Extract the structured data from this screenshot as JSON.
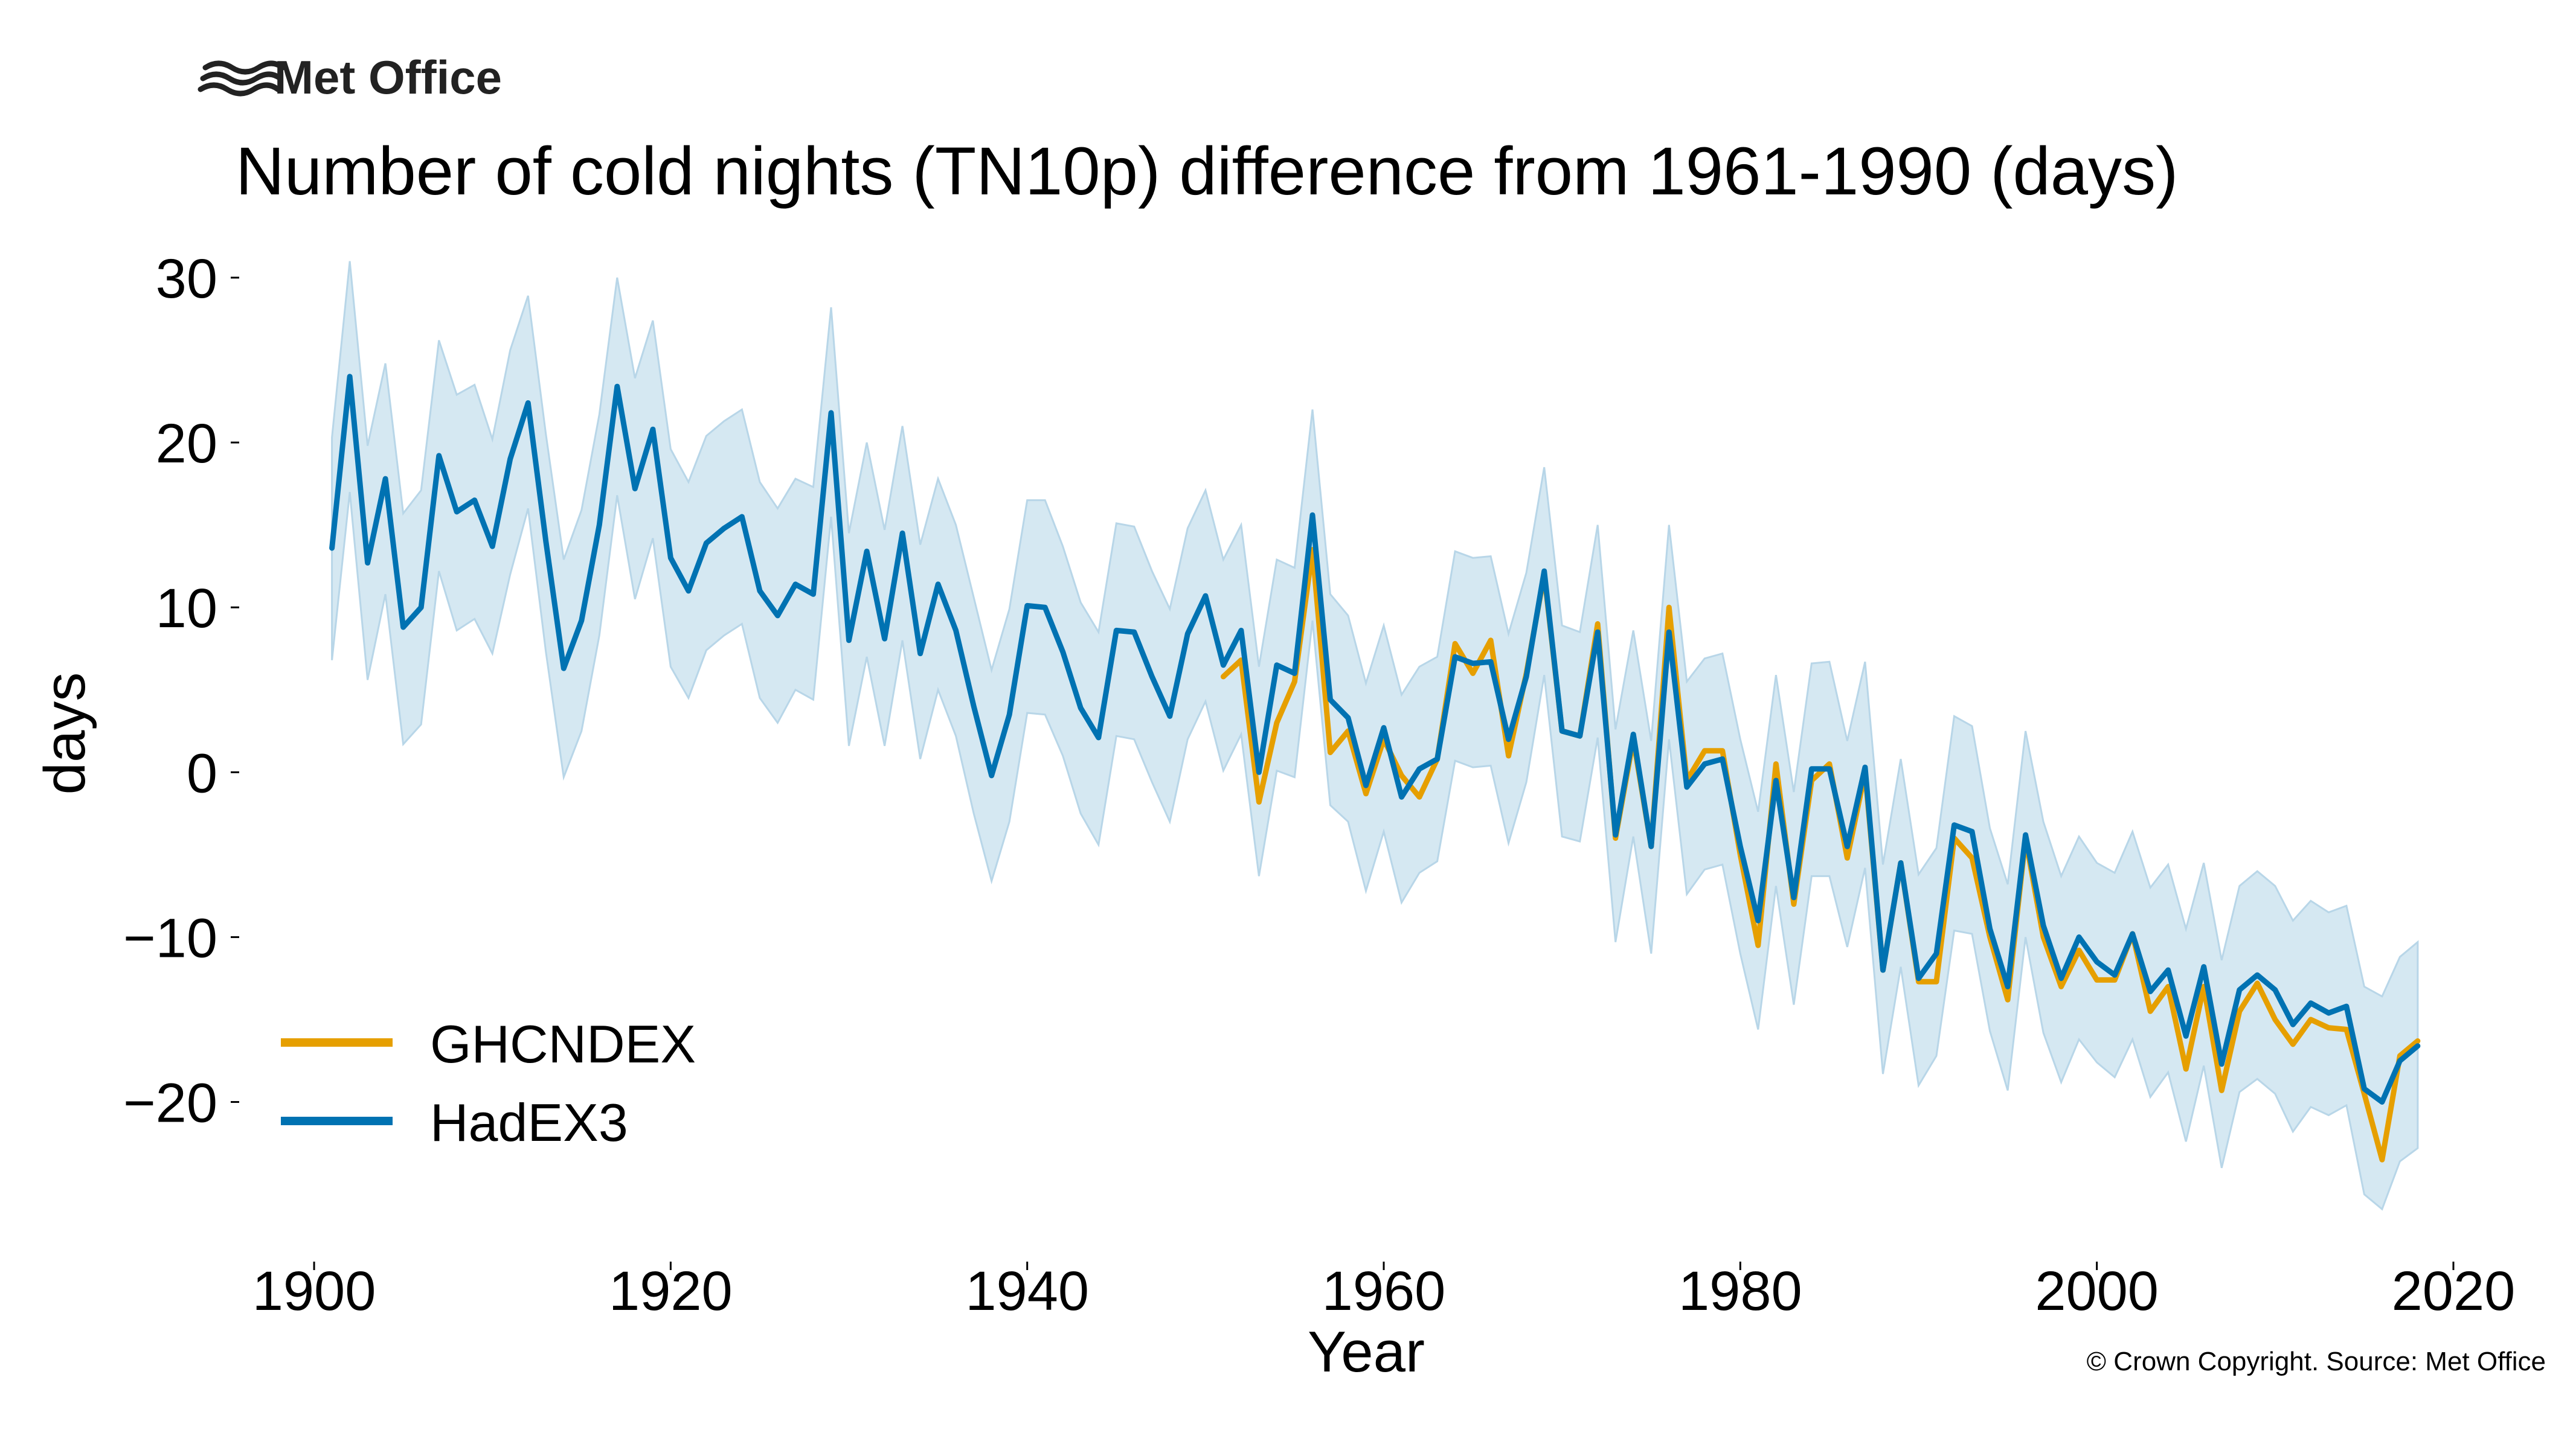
{
  "logo": {
    "text": "Met Office"
  },
  "copyright": "© Crown Copyright. Source: Met Office",
  "colors": {
    "ghcndex": "#e69f00",
    "hadex3": "#0072b2",
    "band": "#d5e8f2",
    "band_edge": "#b8d6e8",
    "axis": "#000000"
  },
  "chart_data": {
    "type": "line",
    "title": "Number of cold nights (TN10p) difference from 1961-1990 (days)",
    "xlabel": "Year",
    "ylabel": "days",
    "xlim": [
      1896,
      2022
    ],
    "ylim": [
      -29.5,
      33
    ],
    "xticks": [
      1900,
      1920,
      1940,
      1960,
      1980,
      2000,
      2020
    ],
    "yticks": [
      30,
      20,
      10,
      0,
      -10,
      -20
    ],
    "ytick_labels": [
      "30",
      "20",
      "10",
      "0",
      "−10",
      "−20"
    ],
    "legend_position": "lower-left",
    "series": [
      {
        "name": "GHCNDEX",
        "color": "#e69f00",
        "x_start": 1951,
        "values": [
          5.8,
          6.8,
          -1.8,
          3.0,
          5.5,
          13.5,
          1.2,
          2.5,
          -1.3,
          2.0,
          -0.2,
          -1.5,
          0.8,
          7.8,
          6.0,
          8.0,
          1.0,
          6.0,
          12.0,
          2.5,
          2.2,
          9.0,
          -4.0,
          2.0,
          -4.5,
          10.0,
          -0.5,
          1.3,
          1.3,
          -5.0,
          -10.5,
          0.5,
          -8.0,
          -0.5,
          0.5,
          -5.2,
          0.0,
          -12.0,
          -5.5,
          -12.7,
          -12.7,
          -4.0,
          -5.2,
          -10.0,
          -13.8,
          -4.0,
          -10.0,
          -13.0,
          -10.8,
          -12.6,
          -12.6,
          -9.8,
          -14.5,
          -13.0,
          -18.0,
          -13.0,
          -19.3,
          -14.5,
          -12.8,
          -15.0,
          -16.5,
          -15.0,
          -15.5,
          -15.6,
          -19.5,
          -23.5,
          -17.2,
          -16.3
        ]
      },
      {
        "name": "HadEX3",
        "color": "#0072b2",
        "x_start": 1901,
        "values": [
          13.6,
          24.0,
          12.7,
          17.8,
          8.8,
          10.0,
          19.2,
          15.8,
          16.5,
          13.7,
          19.0,
          22.4,
          14.0,
          6.3,
          9.2,
          15.0,
          23.4,
          17.2,
          20.8,
          13.0,
          11.0,
          13.9,
          14.8,
          15.5,
          11.0,
          9.5,
          11.4,
          10.8,
          21.8,
          8.0,
          13.4,
          8.1,
          14.5,
          7.2,
          11.4,
          8.6,
          4.0,
          -0.2,
          3.5,
          10.1,
          10.0,
          7.3,
          3.9,
          2.1,
          8.6,
          8.5,
          5.8,
          3.4,
          8.4,
          10.7,
          6.5,
          8.6,
          0.0,
          6.5,
          6.0,
          15.6,
          4.4,
          3.3,
          -0.8,
          2.7,
          -1.5,
          0.2,
          0.8,
          7.0,
          6.6,
          6.7,
          2.0,
          5.8,
          12.2,
          2.5,
          2.2,
          8.5,
          -3.8,
          2.3,
          -4.5,
          8.5,
          -0.9,
          0.5,
          0.8,
          -4.5,
          -9.0,
          -0.5,
          -7.6,
          0.2,
          0.2,
          -4.5,
          0.3,
          -12.0,
          -5.5,
          -12.5,
          -11.0,
          -3.2,
          -3.6,
          -9.5,
          -13.0,
          -3.8,
          -9.3,
          -12.5,
          -10.0,
          -11.5,
          -12.3,
          -9.8,
          -13.3,
          -12.0,
          -16.0,
          -11.8,
          -17.7,
          -13.2,
          -12.3,
          -13.2,
          -15.3,
          -14.0,
          -14.6,
          -14.2,
          -19.2,
          -20.0,
          -17.5,
          -16.6
        ]
      },
      {
        "name": "HadEX3 range (shaded)",
        "color": "#d5e8f2",
        "x_start": 1901,
        "lower": [
          6.8,
          17.0,
          5.6,
          10.8,
          1.7,
          2.9,
          12.2,
          8.6,
          9.3,
          7.2,
          12.0,
          16.0,
          7.3,
          -0.3,
          2.5,
          8.3,
          16.8,
          10.5,
          14.2,
          6.4,
          4.5,
          7.4,
          8.3,
          9.0,
          4.5,
          3.0,
          5.0,
          4.4,
          15.5,
          1.6,
          7.0,
          1.6,
          8.0,
          0.8,
          5.0,
          2.2,
          -2.5,
          -6.6,
          -3.0,
          3.6,
          3.5,
          1.0,
          -2.5,
          -4.4,
          2.2,
          2.0,
          -0.6,
          -3.0,
          2.0,
          4.3,
          0.1,
          2.3,
          -6.3,
          0.1,
          -0.3,
          9.2,
          -2.0,
          -3.0,
          -7.2,
          -3.6,
          -7.9,
          -6.1,
          -5.4,
          0.7,
          0.3,
          0.4,
          -4.3,
          -0.6,
          5.9,
          -3.9,
          -4.2,
          2.1,
          -10.3,
          -3.9,
          -11.0,
          2.0,
          -7.4,
          -5.9,
          -5.6,
          -11.0,
          -15.6,
          -6.9,
          -14.1,
          -6.3,
          -6.3,
          -10.6,
          -5.8,
          -18.3,
          -11.8,
          -19.0,
          -17.2,
          -9.6,
          -9.8,
          -15.7,
          -19.3,
          -10.0,
          -15.8,
          -18.8,
          -16.2,
          -17.6,
          -18.5,
          -16.2,
          -19.7,
          -18.2,
          -22.4,
          -17.8,
          -24.0,
          -19.4,
          -18.6,
          -19.5,
          -21.8,
          -20.3,
          -20.8,
          -20.2,
          -25.6,
          -26.5,
          -23.6,
          -22.8
        ],
        "upper": [
          20.3,
          31.0,
          19.8,
          24.8,
          15.7,
          17.1,
          26.2,
          22.9,
          23.5,
          20.2,
          25.6,
          28.9,
          20.5,
          12.9,
          15.9,
          21.7,
          30.0,
          23.9,
          27.4,
          19.6,
          17.6,
          20.4,
          21.3,
          22.0,
          17.6,
          16.0,
          17.8,
          17.3,
          28.2,
          14.5,
          20.0,
          14.7,
          21.0,
          13.8,
          17.8,
          15.0,
          10.6,
          6.2,
          9.9,
          16.5,
          16.5,
          13.7,
          10.3,
          8.5,
          15.1,
          14.9,
          12.2,
          9.9,
          14.8,
          17.1,
          12.9,
          15.0,
          6.4,
          12.9,
          12.4,
          22.0,
          10.8,
          9.5,
          5.4,
          8.9,
          4.7,
          6.4,
          7.0,
          13.4,
          13.0,
          13.1,
          8.4,
          12.1,
          18.5,
          8.9,
          8.5,
          15.0,
          2.6,
          8.6,
          1.9,
          15.0,
          5.5,
          6.9,
          7.2,
          2.0,
          -2.4,
          5.9,
          -1.2,
          6.6,
          6.7,
          1.9,
          6.7,
          -5.6,
          0.8,
          -6.2,
          -4.6,
          3.4,
          2.8,
          -3.4,
          -6.8,
          2.5,
          -3.0,
          -6.3,
          -3.9,
          -5.5,
          -6.1,
          -3.6,
          -7.0,
          -5.6,
          -9.5,
          -5.5,
          -11.4,
          -6.9,
          -6.0,
          -6.9,
          -9.0,
          -7.8,
          -8.5,
          -8.1,
          -13.0,
          -13.6,
          -11.2,
          -10.3
        ]
      }
    ]
  }
}
